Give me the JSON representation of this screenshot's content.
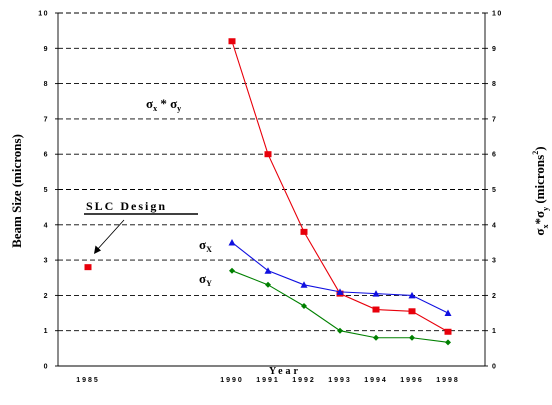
{
  "chart_data": {
    "type": "line",
    "title": "",
    "xlabel": "Year",
    "ylabel": "Beam Size (microns)",
    "y2label_base": "σ",
    "y2label_sub": "x",
    "y2label_mid": "*σ",
    "y2label_sub2": "y",
    "y2label_unit": " (microns",
    "y2label_sup": "2",
    "y2label_close": ")",
    "ylim": [
      0,
      10
    ],
    "grid": true,
    "x_categories": [
      "1985",
      "1990",
      "1991",
      "1992",
      "1993",
      "1994",
      "1996",
      "1998"
    ],
    "y_ticks": [
      "0",
      "1",
      "2",
      "3",
      "4",
      "5",
      "6",
      "7",
      "8",
      "9",
      "10"
    ],
    "series": [
      {
        "key": "product",
        "color": "#e8000b",
        "marker": "square",
        "points": [
          [
            1990,
            9.2
          ],
          [
            1991,
            6.0
          ],
          [
            1992,
            3.8
          ],
          [
            1993,
            2.05
          ],
          [
            1994,
            1.6
          ],
          [
            1996,
            1.55
          ],
          [
            1998,
            0.97
          ]
        ]
      },
      {
        "key": "sx",
        "color": "#1010e0",
        "marker": "triangle",
        "points": [
          [
            1990,
            3.5
          ],
          [
            1991,
            2.7
          ],
          [
            1992,
            2.3
          ],
          [
            1993,
            2.1
          ],
          [
            1994,
            2.05
          ],
          [
            1996,
            2.0
          ],
          [
            1998,
            1.5
          ]
        ]
      },
      {
        "key": "sy",
        "color": "#008000",
        "marker": "diamond",
        "points": [
          [
            1990,
            2.7
          ],
          [
            1991,
            2.3
          ],
          [
            1992,
            1.7
          ],
          [
            1993,
            1.0
          ],
          [
            1994,
            0.8
          ],
          [
            1996,
            0.8
          ],
          [
            1998,
            0.67
          ]
        ]
      },
      {
        "key": "slc",
        "color": "#e8000b",
        "marker": "square",
        "points": [
          [
            1985,
            2.8
          ]
        ]
      }
    ],
    "annotations": {
      "slc_design": "SLC Design",
      "product_base": "σ",
      "product_sub_x": "x",
      "product_mid": " * σ",
      "product_sub_y": "y",
      "sx_base": "σ",
      "sx_sub": "X",
      "sy_base": "σ",
      "sy_sub": "Y"
    }
  }
}
